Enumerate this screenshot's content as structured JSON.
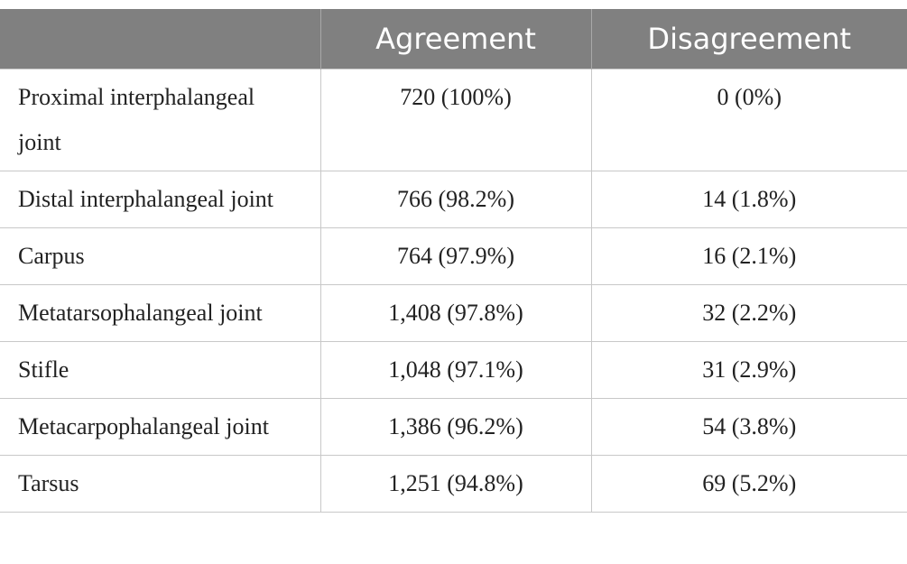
{
  "table": {
    "columns": [
      "Agreement",
      "Disagreement"
    ],
    "rows": [
      [
        "Proximal interphalangeal joint",
        "720 (100%)",
        "0 (0%)"
      ],
      [
        "Distal interphalangeal joint",
        "766 (98.2%)",
        "14 (1.8%)"
      ],
      [
        "Carpus",
        "764 (97.9%)",
        "16 (2.1%)"
      ],
      [
        "Metatarsophalangeal joint",
        "1,408 (97.8%)",
        "32 (2.2%)"
      ],
      [
        "Stifle",
        "1,048 (97.1%)",
        "31 (2.9%)"
      ],
      [
        "Metacarpophalangeal joint",
        "1,386 (96.2%)",
        "54 (3.8%)"
      ],
      [
        "Tarsus",
        "1,251 (94.8%)",
        "69 (5.2%)"
      ]
    ]
  }
}
